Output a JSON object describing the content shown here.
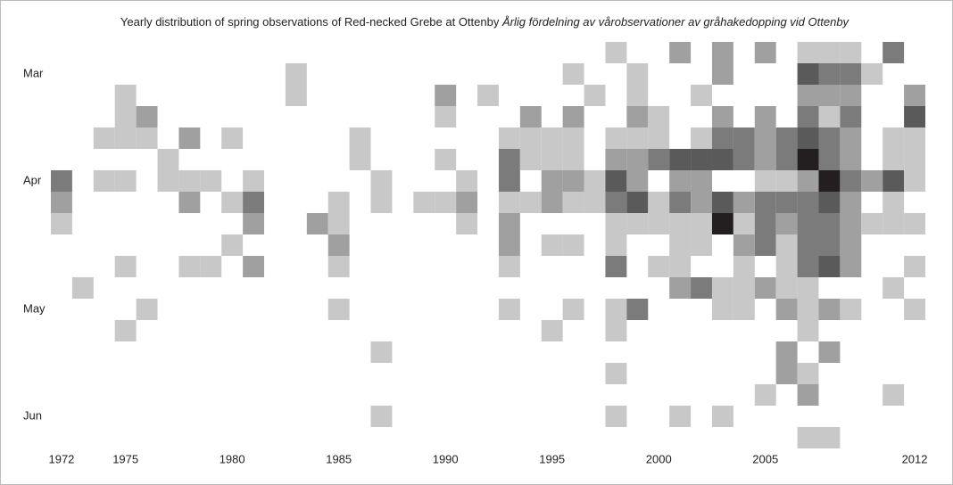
{
  "chart_data": {
    "type": "heatmap",
    "title": "Yearly distribution of spring observations of Red-necked Grebe at Ottenby",
    "subtitle": "Årlig fördelning av vårobservationer av gråhakedopping vid Ottenby",
    "rows": [
      null,
      "Mar",
      null,
      null,
      null,
      null,
      "Apr",
      null,
      null,
      null,
      null,
      null,
      "May",
      null,
      null,
      null,
      null,
      "Jun",
      null
    ],
    "xlim": [
      1971.5,
      2012.5
    ],
    "xticks": [
      1972,
      1975,
      1980,
      1985,
      1990,
      1995,
      2000,
      2005,
      2012
    ],
    "colors": [
      "#c8c8c8",
      "#a0a0a0",
      "#7b7b7b",
      "#5a5a5a",
      "#231f20"
    ],
    "cells": [
      [
        1998,
        0,
        1
      ],
      [
        2001,
        0,
        2
      ],
      [
        2003,
        0,
        2
      ],
      [
        2005,
        0,
        2
      ],
      [
        2007,
        0,
        1
      ],
      [
        2008,
        0,
        1
      ],
      [
        2009,
        0,
        1
      ],
      [
        2011,
        0,
        3
      ],
      [
        1983,
        1,
        1
      ],
      [
        1996,
        1,
        1
      ],
      [
        1999,
        1,
        1
      ],
      [
        2003,
        1,
        2
      ],
      [
        2007,
        1,
        4
      ],
      [
        2008,
        1,
        3
      ],
      [
        2009,
        1,
        3
      ],
      [
        2010,
        1,
        1
      ],
      [
        1975,
        2,
        1
      ],
      [
        1983,
        2,
        1
      ],
      [
        1990,
        2,
        2
      ],
      [
        1992,
        2,
        1
      ],
      [
        1997,
        2,
        1
      ],
      [
        1999,
        2,
        1
      ],
      [
        2002,
        2,
        1
      ],
      [
        2007,
        2,
        2
      ],
      [
        2008,
        2,
        2
      ],
      [
        2009,
        2,
        2
      ],
      [
        2012,
        2,
        2
      ],
      [
        1975,
        3,
        1
      ],
      [
        1976,
        3,
        2
      ],
      [
        1990,
        3,
        1
      ],
      [
        1994,
        3,
        2
      ],
      [
        1996,
        3,
        2
      ],
      [
        1999,
        3,
        2
      ],
      [
        2000,
        3,
        1
      ],
      [
        2003,
        3,
        2
      ],
      [
        2005,
        3,
        2
      ],
      [
        2007,
        3,
        3
      ],
      [
        2008,
        3,
        1
      ],
      [
        2009,
        3,
        3
      ],
      [
        2012,
        3,
        4
      ],
      [
        1974,
        4,
        1
      ],
      [
        1975,
        4,
        1
      ],
      [
        1976,
        4,
        1
      ],
      [
        1978,
        4,
        2
      ],
      [
        1980,
        4,
        1
      ],
      [
        1986,
        4,
        1
      ],
      [
        1993,
        4,
        1
      ],
      [
        1994,
        4,
        1
      ],
      [
        1995,
        4,
        1
      ],
      [
        1996,
        4,
        1
      ],
      [
        1998,
        4,
        1
      ],
      [
        1999,
        4,
        1
      ],
      [
        2000,
        4,
        1
      ],
      [
        2002,
        4,
        1
      ],
      [
        2003,
        4,
        3
      ],
      [
        2004,
        4,
        3
      ],
      [
        2005,
        4,
        2
      ],
      [
        2006,
        4,
        3
      ],
      [
        2007,
        4,
        4
      ],
      [
        2008,
        4,
        3
      ],
      [
        2009,
        4,
        2
      ],
      [
        2011,
        4,
        1
      ],
      [
        2012,
        4,
        1
      ],
      [
        1977,
        5,
        1
      ],
      [
        1986,
        5,
        1
      ],
      [
        1990,
        5,
        1
      ],
      [
        1993,
        5,
        3
      ],
      [
        1994,
        5,
        1
      ],
      [
        1995,
        5,
        1
      ],
      [
        1996,
        5,
        1
      ],
      [
        1998,
        5,
        2
      ],
      [
        1999,
        5,
        2
      ],
      [
        2000,
        5,
        3
      ],
      [
        2001,
        5,
        4
      ],
      [
        2002,
        5,
        4
      ],
      [
        2003,
        5,
        4
      ],
      [
        2004,
        5,
        3
      ],
      [
        2005,
        5,
        2
      ],
      [
        2006,
        5,
        3
      ],
      [
        2007,
        5,
        5
      ],
      [
        2008,
        5,
        3
      ],
      [
        2009,
        5,
        2
      ],
      [
        2011,
        5,
        1
      ],
      [
        2012,
        5,
        1
      ],
      [
        1972,
        6,
        3
      ],
      [
        1974,
        6,
        1
      ],
      [
        1975,
        6,
        1
      ],
      [
        1977,
        6,
        1
      ],
      [
        1978,
        6,
        1
      ],
      [
        1979,
        6,
        1
      ],
      [
        1981,
        6,
        1
      ],
      [
        1987,
        6,
        1
      ],
      [
        1991,
        6,
        1
      ],
      [
        1993,
        6,
        3
      ],
      [
        1995,
        6,
        2
      ],
      [
        1996,
        6,
        2
      ],
      [
        1997,
        6,
        1
      ],
      [
        1998,
        6,
        4
      ],
      [
        1999,
        6,
        2
      ],
      [
        2001,
        6,
        2
      ],
      [
        2002,
        6,
        2
      ],
      [
        2005,
        6,
        1
      ],
      [
        2006,
        6,
        1
      ],
      [
        2007,
        6,
        2
      ],
      [
        2008,
        6,
        5
      ],
      [
        2009,
        6,
        3
      ],
      [
        2010,
        6,
        2
      ],
      [
        2011,
        6,
        4
      ],
      [
        2012,
        6,
        1
      ],
      [
        1972,
        7,
        2
      ],
      [
        1978,
        7,
        2
      ],
      [
        1980,
        7,
        1
      ],
      [
        1981,
        7,
        3
      ],
      [
        1985,
        7,
        1
      ],
      [
        1987,
        7,
        1
      ],
      [
        1989,
        7,
        1
      ],
      [
        1990,
        7,
        1
      ],
      [
        1991,
        7,
        2
      ],
      [
        1993,
        7,
        1
      ],
      [
        1994,
        7,
        1
      ],
      [
        1995,
        7,
        2
      ],
      [
        1996,
        7,
        1
      ],
      [
        1997,
        7,
        1
      ],
      [
        1998,
        7,
        3
      ],
      [
        1999,
        7,
        4
      ],
      [
        2000,
        7,
        1
      ],
      [
        2001,
        7,
        3
      ],
      [
        2002,
        7,
        2
      ],
      [
        2003,
        7,
        4
      ],
      [
        2004,
        7,
        2
      ],
      [
        2005,
        7,
        3
      ],
      [
        2006,
        7,
        3
      ],
      [
        2007,
        7,
        3
      ],
      [
        2008,
        7,
        4
      ],
      [
        2009,
        7,
        2
      ],
      [
        2011,
        7,
        1
      ],
      [
        1972,
        8,
        1
      ],
      [
        1981,
        8,
        2
      ],
      [
        1984,
        8,
        2
      ],
      [
        1985,
        8,
        1
      ],
      [
        1991,
        8,
        1
      ],
      [
        1993,
        8,
        2
      ],
      [
        1998,
        8,
        1
      ],
      [
        1999,
        8,
        1
      ],
      [
        2000,
        8,
        1
      ],
      [
        2001,
        8,
        1
      ],
      [
        2002,
        8,
        1
      ],
      [
        2003,
        8,
        5
      ],
      [
        2004,
        8,
        1
      ],
      [
        2005,
        8,
        3
      ],
      [
        2006,
        8,
        2
      ],
      [
        2007,
        8,
        3
      ],
      [
        2008,
        8,
        3
      ],
      [
        2009,
        8,
        2
      ],
      [
        2010,
        8,
        1
      ],
      [
        2011,
        8,
        1
      ],
      [
        2012,
        8,
        1
      ],
      [
        1980,
        9,
        1
      ],
      [
        1985,
        9,
        2
      ],
      [
        1993,
        9,
        2
      ],
      [
        1995,
        9,
        1
      ],
      [
        1996,
        9,
        1
      ],
      [
        1998,
        9,
        1
      ],
      [
        2001,
        9,
        1
      ],
      [
        2002,
        9,
        1
      ],
      [
        2004,
        9,
        2
      ],
      [
        2005,
        9,
        3
      ],
      [
        2006,
        9,
        1
      ],
      [
        2007,
        9,
        3
      ],
      [
        2008,
        9,
        3
      ],
      [
        2009,
        9,
        2
      ],
      [
        1975,
        10,
        1
      ],
      [
        1978,
        10,
        1
      ],
      [
        1979,
        10,
        1
      ],
      [
        1981,
        10,
        2
      ],
      [
        1985,
        10,
        1
      ],
      [
        1993,
        10,
        1
      ],
      [
        1998,
        10,
        3
      ],
      [
        2000,
        10,
        1
      ],
      [
        2001,
        10,
        1
      ],
      [
        2004,
        10,
        1
      ],
      [
        2006,
        10,
        1
      ],
      [
        2007,
        10,
        3
      ],
      [
        2008,
        10,
        4
      ],
      [
        2009,
        10,
        2
      ],
      [
        2012,
        10,
        1
      ],
      [
        1973,
        11,
        1
      ],
      [
        2001,
        11,
        2
      ],
      [
        2002,
        11,
        3
      ],
      [
        2003,
        11,
        1
      ],
      [
        2004,
        11,
        1
      ],
      [
        2005,
        11,
        2
      ],
      [
        2006,
        11,
        1
      ],
      [
        2007,
        11,
        1
      ],
      [
        2011,
        11,
        1
      ],
      [
        1976,
        12,
        1
      ],
      [
        1985,
        12,
        1
      ],
      [
        1993,
        12,
        1
      ],
      [
        1996,
        12,
        1
      ],
      [
        1998,
        12,
        1
      ],
      [
        1999,
        12,
        3
      ],
      [
        2003,
        12,
        1
      ],
      [
        2004,
        12,
        1
      ],
      [
        2006,
        12,
        2
      ],
      [
        2007,
        12,
        1
      ],
      [
        2008,
        12,
        2
      ],
      [
        2009,
        12,
        1
      ],
      [
        2012,
        12,
        1
      ],
      [
        1975,
        13,
        1
      ],
      [
        1995,
        13,
        1
      ],
      [
        1998,
        13,
        1
      ],
      [
        2007,
        13,
        1
      ],
      [
        1987,
        14,
        1
      ],
      [
        2006,
        14,
        2
      ],
      [
        2008,
        14,
        2
      ],
      [
        1998,
        15,
        1
      ],
      [
        2006,
        15,
        2
      ],
      [
        2007,
        15,
        1
      ],
      [
        2005,
        16,
        1
      ],
      [
        2007,
        16,
        2
      ],
      [
        2011,
        16,
        1
      ],
      [
        1987,
        17,
        1
      ],
      [
        1998,
        17,
        1
      ],
      [
        2001,
        17,
        1
      ],
      [
        2003,
        17,
        1
      ],
      [
        2007,
        18,
        1
      ],
      [
        2008,
        18,
        1
      ]
    ]
  }
}
